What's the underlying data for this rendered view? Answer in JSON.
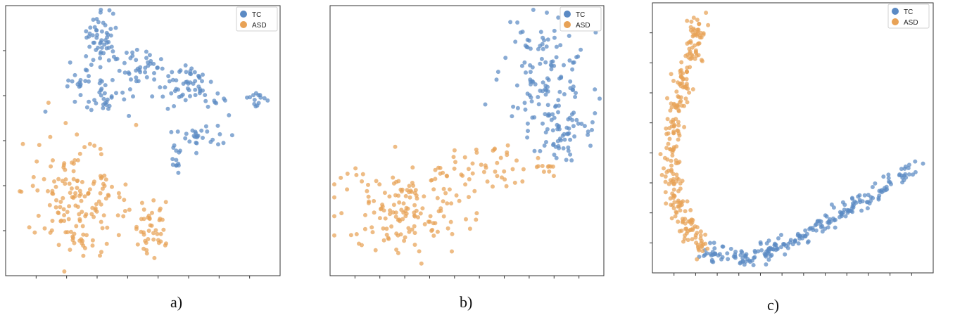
{
  "colors": {
    "TC": "#5b8ac4",
    "ASD": "#e8a256",
    "frame": "#333333"
  },
  "chart_data": [
    {
      "type": "scatter",
      "caption": "a)",
      "title": "",
      "xlabel": "",
      "ylabel": "",
      "legend_position": "top-right",
      "x_ticks": 8,
      "y_ticks": 5,
      "grid": false,
      "series": [
        {
          "name": "TC",
          "clusters": [
            {
              "cx": 147,
              "cy": 55,
              "sx": 12,
              "sy": 20,
              "n": 55
            },
            {
              "cx": 195,
              "cy": 92,
              "sx": 16,
              "sy": 14,
              "n": 35
            },
            {
              "cx": 262,
              "cy": 120,
              "sx": 20,
              "sy": 16,
              "n": 55
            },
            {
              "cx": 148,
              "cy": 138,
              "sx": 24,
              "sy": 18,
              "n": 40
            },
            {
              "cx": 108,
              "cy": 112,
              "sx": 8,
              "sy": 10,
              "n": 12
            },
            {
              "cx": 280,
              "cy": 195,
              "sx": 18,
              "sy": 10,
              "n": 28
            },
            {
              "cx": 252,
              "cy": 225,
              "sx": 8,
              "sy": 12,
              "n": 12
            },
            {
              "cx": 313,
              "cy": 150,
              "sx": 6,
              "sy": 8,
              "n": 8
            },
            {
              "cx": 367,
              "cy": 141,
              "sx": 8,
              "sy": 6,
              "n": 14
            }
          ]
        },
        {
          "name": "ASD",
          "clusters": [
            {
              "cx": 108,
              "cy": 275,
              "sx": 38,
              "sy": 38,
              "n": 140
            },
            {
              "cx": 215,
              "cy": 318,
              "sx": 14,
              "sy": 20,
              "n": 45
            },
            {
              "cx": 118,
              "cy": 340,
              "sx": 14,
              "sy": 10,
              "n": 15
            }
          ]
        }
      ],
      "xlim": [
        8,
        398
      ],
      "ylim": [
        8,
        392
      ]
    },
    {
      "type": "scatter",
      "caption": "b)",
      "title": "",
      "xlabel": "",
      "ylabel": "",
      "legend_position": "top-right",
      "x_ticks": 10,
      "y_ticks": 0,
      "grid": false,
      "series": [
        {
          "name": "TC",
          "clusters": [
            {
              "cx": 775,
              "cy": 110,
              "sx": 30,
              "sy": 38,
              "n": 120
            },
            {
              "cx": 800,
              "cy": 185,
              "sx": 24,
              "sy": 26,
              "n": 55
            }
          ]
        },
        {
          "name": "ASD",
          "clusters": [
            {
              "cx": 570,
              "cy": 300,
              "sx": 45,
              "sy": 32,
              "n": 150
            },
            {
              "cx": 680,
              "cy": 240,
              "sx": 28,
              "sy": 18,
              "n": 45
            },
            {
              "cx": 770,
              "cy": 238,
              "sx": 12,
              "sy": 6,
              "n": 12
            }
          ]
        }
      ],
      "xlim": [
        469,
        858
      ],
      "ylim": [
        8,
        392
      ]
    },
    {
      "type": "scatter",
      "caption": "c)",
      "title": "",
      "xlabel": "",
      "ylabel": "",
      "legend_position": "top-right",
      "x_ticks": 12,
      "y_ticks": 8,
      "grid": false,
      "series": [
        {
          "name": "TC",
          "path": [
            [
              1002,
              356
            ],
            [
              1040,
              368
            ],
            [
              1080,
              362
            ],
            [
              1110,
              350
            ],
            [
              1140,
              335
            ],
            [
              1170,
              318
            ],
            [
              1200,
              300
            ],
            [
              1230,
              282
            ],
            [
              1260,
              262
            ],
            [
              1300,
              238
            ]
          ],
          "n": 230,
          "spread": 6
        },
        {
          "name": "ASD",
          "path": [
            [
              995,
              28
            ],
            [
              990,
              60
            ],
            [
              975,
              95
            ],
            [
              968,
              130
            ],
            [
              960,
              165
            ],
            [
              955,
              200
            ],
            [
              955,
              235
            ],
            [
              960,
              268
            ],
            [
              966,
              300
            ],
            [
              980,
              330
            ],
            [
              1002,
              356
            ]
          ],
          "n": 260,
          "spread": 7
        }
      ],
      "xlim": [
        927,
        1326
      ],
      "ylim": [
        4,
        388
      ]
    }
  ]
}
